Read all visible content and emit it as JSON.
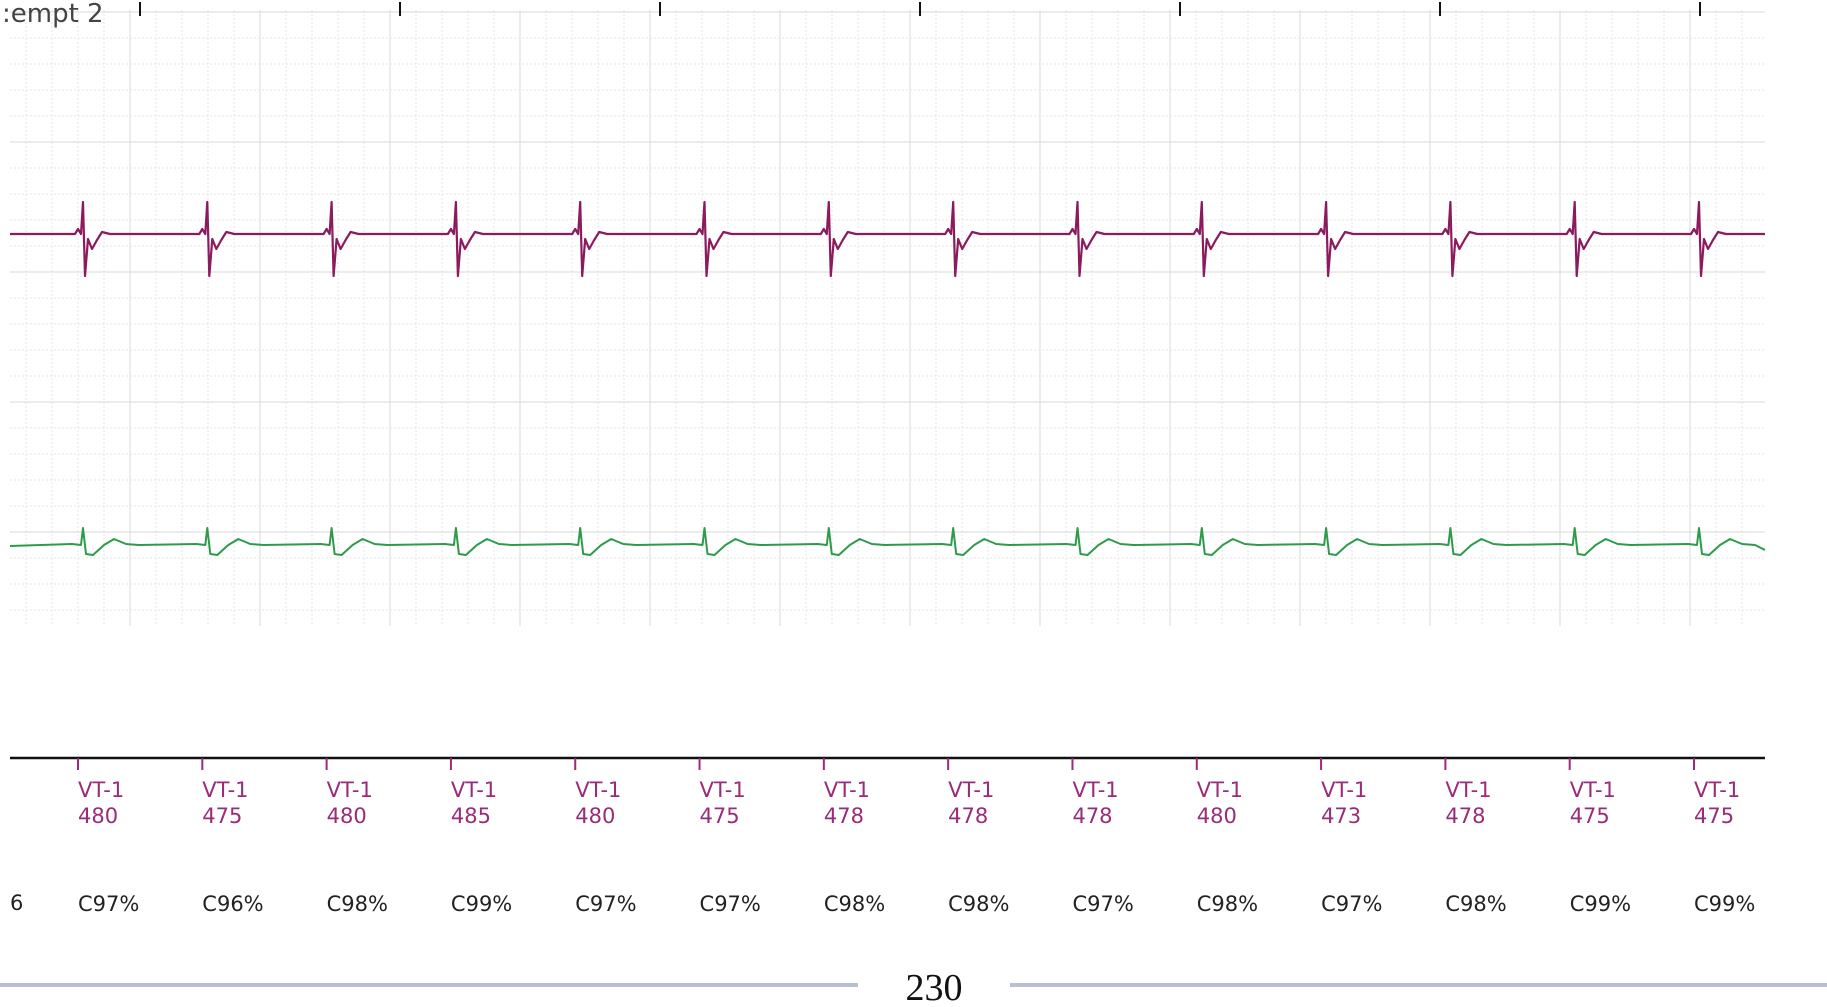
{
  "header_text": ":empt 2",
  "page_number": "230",
  "partial_left_confidence": "6",
  "colors": {
    "trace_top": "#8b1a5e",
    "trace_bottom": "#2e9b4a",
    "annotation": "#9b2a7a",
    "grid_major": "#dadada",
    "grid_minor": "#e6e6e6",
    "footer_rule": "#b8bfd3"
  },
  "chart_data": {
    "type": "line",
    "title": "",
    "xlabel": "",
    "ylabel": "",
    "grid": true,
    "series": [
      {
        "lead": "top",
        "color": "#8b1a5e"
      },
      {
        "lead": "bottom",
        "color": "#2e9b4a"
      }
    ],
    "beats": [
      {
        "label": "VT-1",
        "value": "480",
        "confidence": "C97%"
      },
      {
        "label": "VT-1",
        "value": "475",
        "confidence": "C96%"
      },
      {
        "label": "VT-1",
        "value": "480",
        "confidence": "C98%"
      },
      {
        "label": "VT-1",
        "value": "485",
        "confidence": "C99%"
      },
      {
        "label": "VT-1",
        "value": "480",
        "confidence": "C97%"
      },
      {
        "label": "VT-1",
        "value": "475",
        "confidence": "C97%"
      },
      {
        "label": "VT-1",
        "value": "478",
        "confidence": "C98%"
      },
      {
        "label": "VT-1",
        "value": "478",
        "confidence": "C98%"
      },
      {
        "label": "VT-1",
        "value": "478",
        "confidence": "C97%"
      },
      {
        "label": "VT-1",
        "value": "480",
        "confidence": "C98%"
      },
      {
        "label": "VT-1",
        "value": "473",
        "confidence": "C97%"
      },
      {
        "label": "VT-1",
        "value": "478",
        "confidence": "C98%"
      },
      {
        "label": "VT-1",
        "value": "475",
        "confidence": "C99%"
      },
      {
        "label": "VT-1",
        "value": "475",
        "confidence": "C99%"
      }
    ]
  }
}
